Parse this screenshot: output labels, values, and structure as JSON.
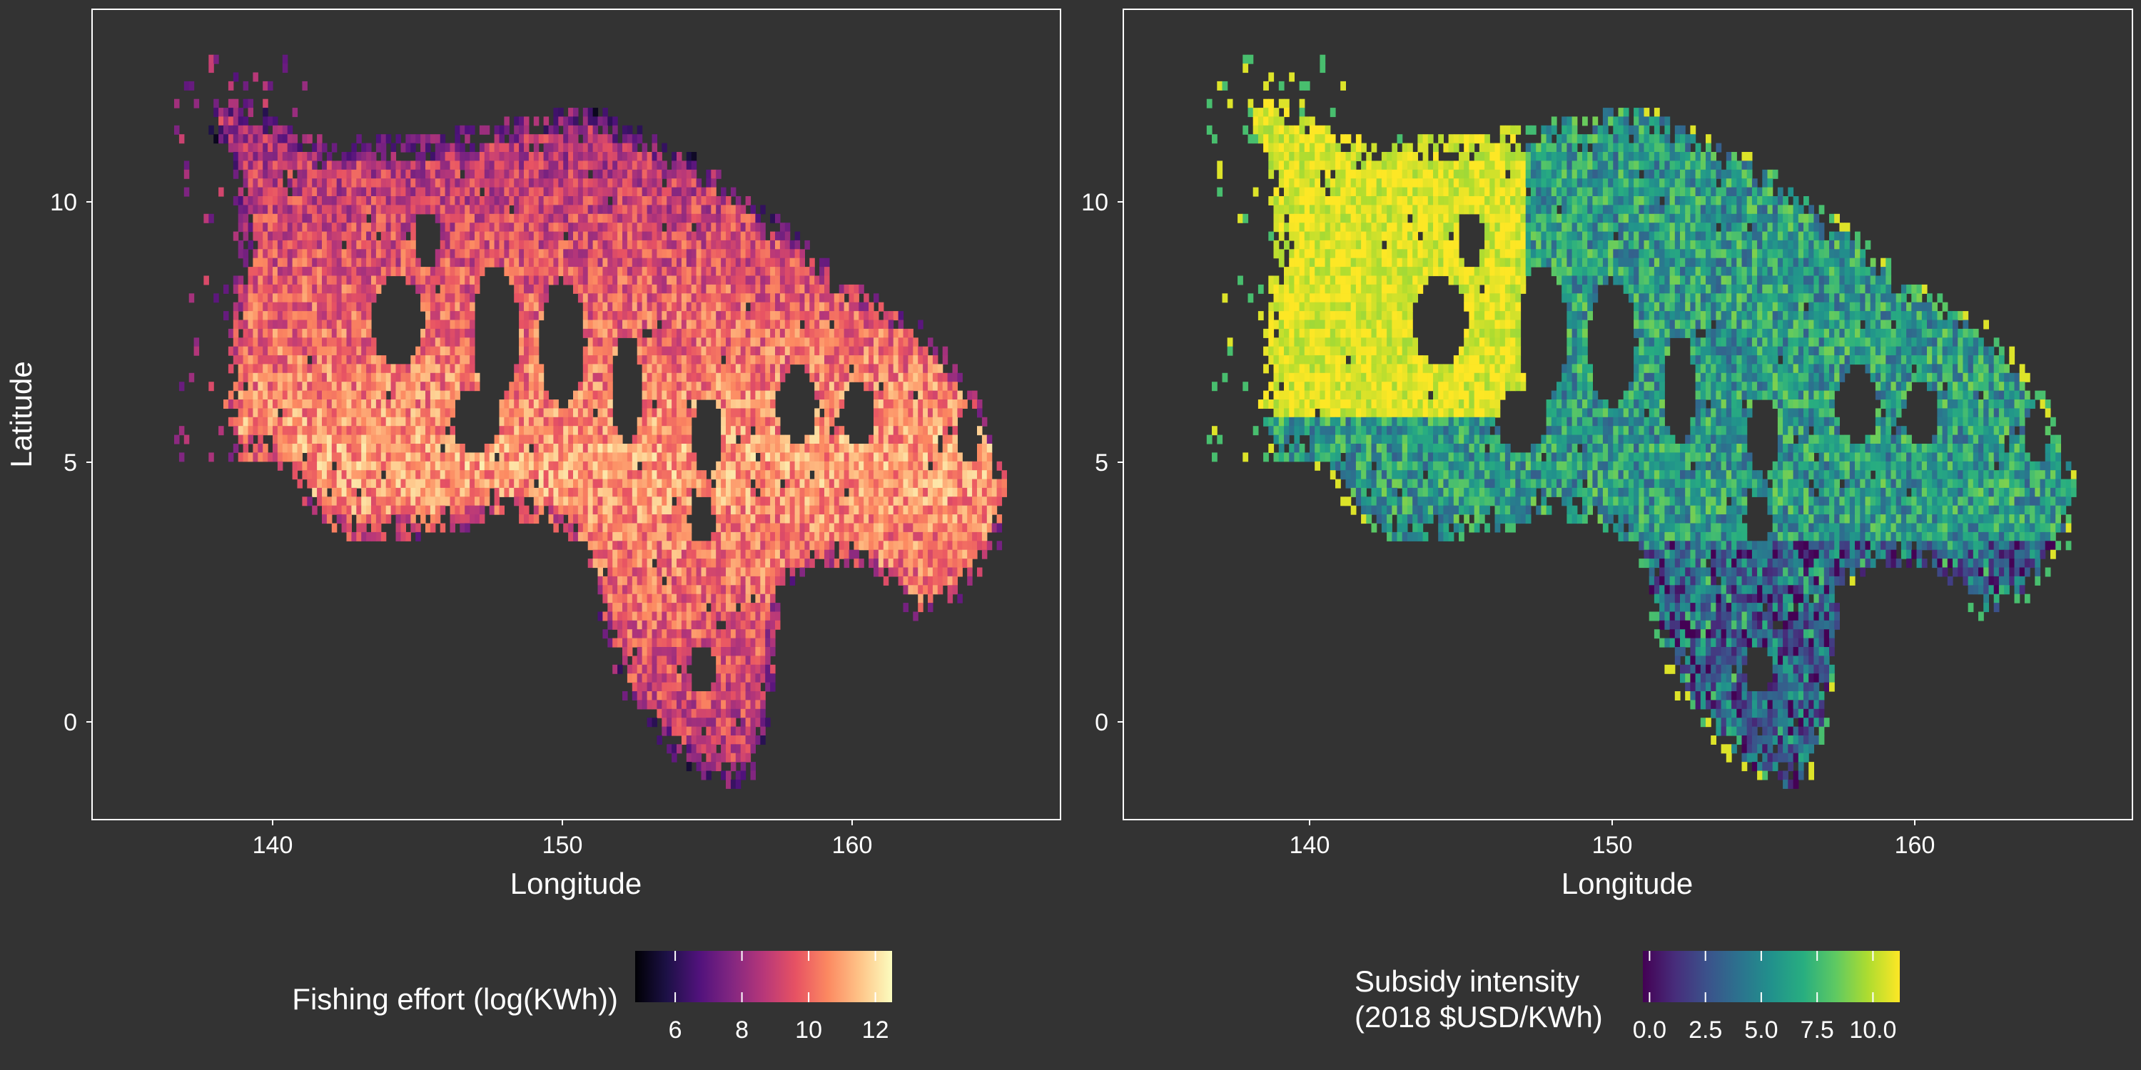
{
  "panels": [
    {
      "id": "effort",
      "xlabel": "Longitude",
      "ylabel": "Latitude",
      "xticks": [
        "140",
        "150",
        "160"
      ],
      "yticks": [
        "10",
        "5",
        "0"
      ],
      "palette": [
        "#000004",
        "#1d1147",
        "#51127c",
        "#822681",
        "#b73779",
        "#e75263",
        "#fc8961",
        "#fec488",
        "#fcfdbf"
      ],
      "legend": {
        "title_lines": [
          "Fishing effort (log(KWh))"
        ],
        "min": 4.8,
        "max": 12.5,
        "ticks": [
          "6",
          "8",
          "10",
          "12"
        ],
        "tick_values": [
          6,
          8,
          10,
          12
        ]
      }
    },
    {
      "id": "subsidy",
      "xlabel": "Longitude",
      "ylabel": "",
      "xticks": [
        "140",
        "150",
        "160"
      ],
      "yticks": [
        "10",
        "5",
        "0"
      ],
      "palette": [
        "#440154",
        "#472d7b",
        "#3b528b",
        "#2c728e",
        "#21918c",
        "#28ae80",
        "#5ec962",
        "#addc30",
        "#fde725"
      ],
      "legend": {
        "title_lines": [
          "Subsidy intensity",
          "(2018 $USD/KWh)"
        ],
        "min": -0.3,
        "max": 11.2,
        "ticks": [
          "0.0",
          "2.5",
          "5.0",
          "7.5",
          "10.0"
        ],
        "tick_values": [
          0,
          2.5,
          5,
          7.5,
          10
        ]
      }
    }
  ],
  "chart_data": [
    {
      "type": "heatmap",
      "title": "",
      "xlabel": "Longitude",
      "ylabel": "Latitude",
      "xlim": [
        133,
        167
      ],
      "ylim": [
        -2,
        13.5
      ],
      "colorbar_label": "Fishing effort (log(KWh))",
      "color_range": [
        4.8,
        12.5
      ],
      "colorscale": "magma",
      "grid": false,
      "legend": "bottom"
    },
    {
      "type": "heatmap",
      "title": "",
      "xlabel": "Longitude",
      "ylabel": "",
      "xlim": [
        133,
        167
      ],
      "ylim": [
        -2,
        13.5
      ],
      "colorbar_label": "Subsidy intensity (2018 $USD/KWh)",
      "color_range": [
        -0.3,
        11.2
      ],
      "colorscale": "viridis",
      "grid": false,
      "legend": "bottom"
    }
  ]
}
